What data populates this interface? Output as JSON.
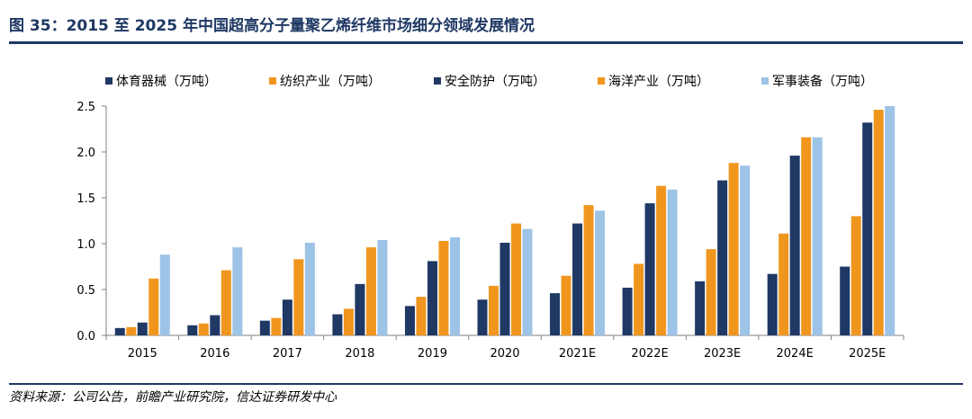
{
  "figure": {
    "title": "图 35：2015 至 2025 年中国超高分子量聚乙烯纤维市场细分领域发展情况",
    "source": "资料来源：公司公告，前瞻产业研究院，信达证券研发中心"
  },
  "chart_data": {
    "type": "bar",
    "categories": [
      "2015",
      "2016",
      "2017",
      "2018",
      "2019",
      "2020",
      "2021E",
      "2022E",
      "2023E",
      "2024E",
      "2025E"
    ],
    "series": [
      {
        "name": "体育器械（万吨）",
        "color": "#1f3864",
        "values": [
          0.08,
          0.11,
          0.16,
          0.23,
          0.32,
          0.39,
          0.46,
          0.52,
          0.59,
          0.67,
          0.75
        ]
      },
      {
        "name": "纺织产业（万吨）",
        "color": "#f0961e",
        "values": [
          0.09,
          0.13,
          0.19,
          0.29,
          0.42,
          0.54,
          0.65,
          0.78,
          0.94,
          1.11,
          1.3
        ]
      },
      {
        "name": "安全防护（万吨）",
        "color": "#1f3864",
        "values": [
          0.14,
          0.22,
          0.39,
          0.56,
          0.81,
          1.01,
          1.22,
          1.44,
          1.69,
          1.96,
          2.32
        ]
      },
      {
        "name": "海洋产业（万吨）",
        "color": "#f0961e",
        "values": [
          0.62,
          0.71,
          0.83,
          0.96,
          1.03,
          1.22,
          1.42,
          1.63,
          1.88,
          2.16,
          2.46
        ]
      },
      {
        "name": "军事装备（万吨）",
        "color": "#9dc3e6",
        "values": [
          0.88,
          0.96,
          1.01,
          1.04,
          1.07,
          1.16,
          1.36,
          1.59,
          1.85,
          2.16,
          2.5
        ]
      }
    ],
    "yticks": [
      "0.0",
      "0.5",
      "1.0",
      "1.5",
      "2.0",
      "2.5"
    ],
    "ylim": [
      0,
      2.5
    ],
    "grid": false,
    "legend": "top"
  }
}
